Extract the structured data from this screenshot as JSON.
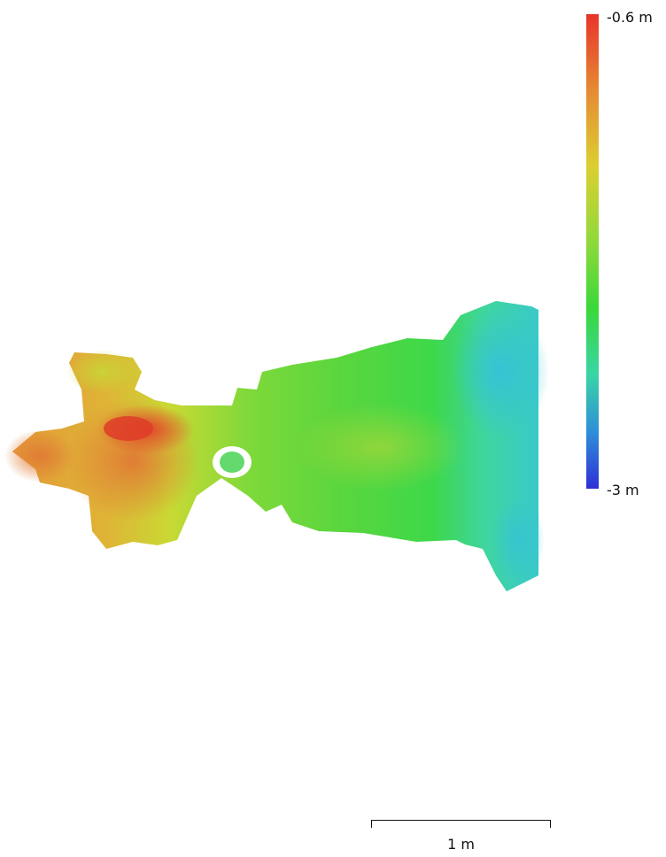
{
  "legend": {
    "max_label": "-0.6 m",
    "min_label": "-3 m",
    "colors": [
      "#e8332a",
      "#e58a33",
      "#dccf31",
      "#8fd93a",
      "#3ad83a",
      "#39d5a6",
      "#2f8fd8",
      "#2e2fd6"
    ]
  },
  "scale_bar": {
    "label": "1 m"
  }
}
